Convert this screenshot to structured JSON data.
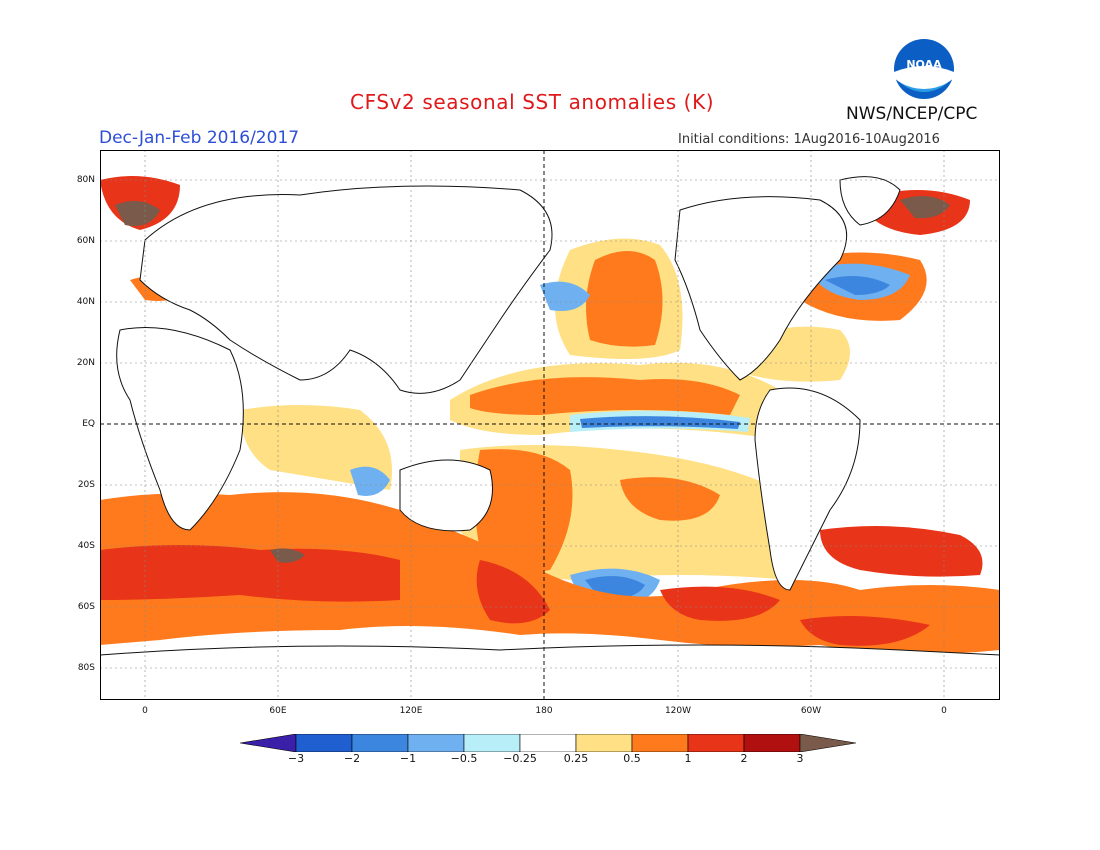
{
  "title": "CFSv2 seasonal SST anomalies (K)",
  "org": "NWS/NCEP/CPC",
  "logo_text": "NOAA",
  "season": "Dec-Jan-Feb 2016/2017",
  "initial_conditions": "Initial conditions: 1Aug2016-10Aug2016",
  "lat_labels": [
    "80N",
    "60N",
    "40N",
    "20N",
    "EQ",
    "20S",
    "40S",
    "60S",
    "80S"
  ],
  "lon_labels": [
    "0",
    "60E",
    "120E",
    "180",
    "120W",
    "60W",
    "0"
  ],
  "colorbar": {
    "labels": [
      "-3",
      "-2",
      "-1",
      "-0.5",
      "-0.25",
      "0.25",
      "0.5",
      "1",
      "2",
      "3"
    ],
    "colors": [
      "#3a1fa8",
      "#1f5fd0",
      "#3d86e0",
      "#6fb0f0",
      "#b8eef8",
      "#ffffff",
      "#ffe084",
      "#ff7a1c",
      "#e83418",
      "#b01010",
      "#7a5a4a"
    ]
  }
}
